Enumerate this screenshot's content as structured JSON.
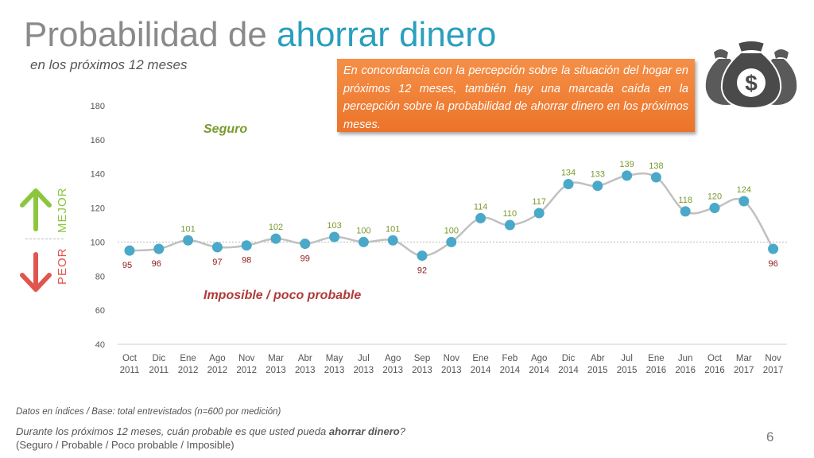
{
  "title": {
    "prefix": "Probabilidad de ",
    "highlight": "ahorrar dinero"
  },
  "subtitle": "en los próximos 12 meses",
  "callout": "En concordancia con la percepción sobre la situación del hogar en próximos 12 meses, también hay una marcada caída en la percepción sobre la probabilidad de ahorrar dinero en los próximos meses.",
  "side_labels": {
    "better": "MEJOR",
    "worse": "PEOR"
  },
  "icons": {
    "arrow_up": "arrow-up-icon",
    "arrow_down": "arrow-down-icon",
    "money": "money-bag-icon"
  },
  "colors": {
    "line": "#c0c0c0",
    "point": "#4aa8c8",
    "good": "#7a9a2e",
    "bad": "#8b1a1a",
    "accent": "#2a9fbe",
    "callout": "#ef7c30"
  },
  "chart_data": {
    "type": "line",
    "categories": [
      "Oct 2011",
      "Dic 2011",
      "Ene 2012",
      "Ago 2012",
      "Nov 2012",
      "Mar 2013",
      "Abr 2013",
      "May 2013",
      "Jul 2013",
      "Ago 2013",
      "Sep 2013",
      "Nov 2013",
      "Ene 2014",
      "Feb 2014",
      "Ago 2014",
      "Dic 2014",
      "Abr 2015",
      "Jul 2015",
      "Ene 2016",
      "Jun 2016",
      "Oct 2016",
      "Mar 2017",
      "Nov 2017"
    ],
    "x_labels": [
      [
        "Oct",
        "2011"
      ],
      [
        "Dic",
        "2011"
      ],
      [
        "Ene",
        "2012"
      ],
      [
        "Ago",
        "2012"
      ],
      [
        "Nov",
        "2012"
      ],
      [
        "Mar",
        "2013"
      ],
      [
        "Abr",
        "2013"
      ],
      [
        "May",
        "2013"
      ],
      [
        "Jul",
        "2013"
      ],
      [
        "Ago",
        "2013"
      ],
      [
        "Sep",
        "2013"
      ],
      [
        "Nov",
        "2013"
      ],
      [
        "Ene",
        "2014"
      ],
      [
        "Feb",
        "2014"
      ],
      [
        "Ago",
        "2014"
      ],
      [
        "Dic",
        "2014"
      ],
      [
        "Abr",
        "2015"
      ],
      [
        "Jul",
        "2015"
      ],
      [
        "Ene",
        "2016"
      ],
      [
        "Jun",
        "2016"
      ],
      [
        "Oct",
        "2016"
      ],
      [
        "Mar",
        "2017"
      ],
      [
        "Nov",
        "2017"
      ]
    ],
    "values": [
      95,
      96,
      101,
      97,
      98,
      102,
      99,
      103,
      100,
      101,
      92,
      100,
      114,
      110,
      117,
      134,
      133,
      139,
      138,
      118,
      120,
      124,
      96
    ],
    "ylim": [
      40,
      180
    ],
    "yticks": [
      40,
      60,
      80,
      100,
      120,
      140,
      160,
      180
    ],
    "reference_line": 100,
    "zone_labels": {
      "upper": "Seguro",
      "lower": "Imposible / poco probable"
    }
  },
  "footnote": "Datos en índices / Base: total entrevistados (n=600 por medición)",
  "question": {
    "prefix": "Durante los próximos 12 meses, cuán probable es que usted pueda ",
    "bold": "ahorrar dinero",
    "suffix": "?",
    "options": "(Seguro / Probable / Poco probable / Imposible)"
  },
  "page_number": "6"
}
